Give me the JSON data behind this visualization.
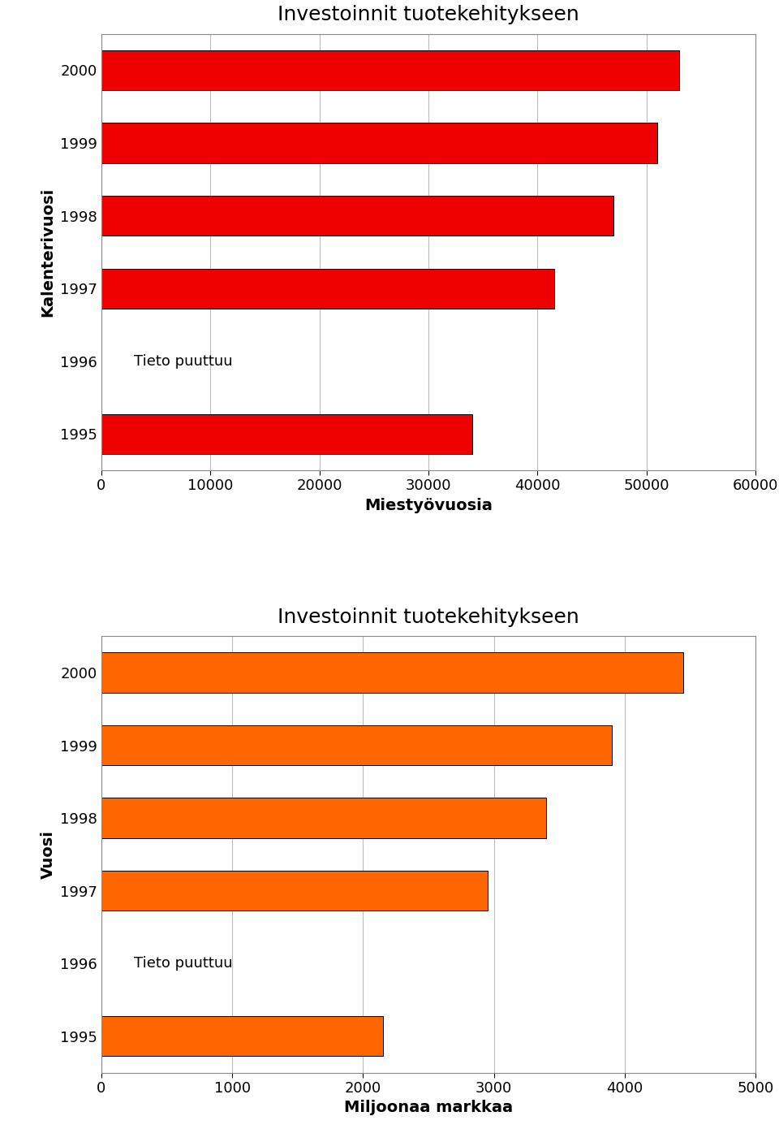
{
  "chart1": {
    "title": "Investoinnit tuotekehitykseen",
    "ylabel": "Kalenterivuosi",
    "xlabel": "Miestyövuosia",
    "years": [
      "2000",
      "1999",
      "1998",
      "1997",
      "1996",
      "1995"
    ],
    "values": [
      53000,
      51000,
      47000,
      41500,
      null,
      34000
    ],
    "bar_color": "#EE0000",
    "bar_edge_color": "#000000",
    "xlim": [
      0,
      60000
    ],
    "xticks": [
      0,
      10000,
      20000,
      30000,
      40000,
      50000,
      60000
    ],
    "missing_label": "Tieto puuttuu",
    "grid_color": "#bbbbbb"
  },
  "chart2": {
    "title": "Investoinnit tuotekehitykseen",
    "ylabel": "Vuosi",
    "xlabel": "Miljoonaa markkaa",
    "years": [
      "2000",
      "1999",
      "1998",
      "1997",
      "1996",
      "1995"
    ],
    "values": [
      4450,
      3900,
      3400,
      2950,
      null,
      2150
    ],
    "bar_color": "#FF6600",
    "bar_edge_color": "#000000",
    "xlim": [
      0,
      5000
    ],
    "xticks": [
      0,
      1000,
      2000,
      3000,
      4000,
      5000
    ],
    "missing_label": "Tieto puuttuu",
    "grid_color": "#bbbbbb"
  },
  "bg_color": "#ffffff",
  "title_fontsize": 18,
  "xlabel_fontsize": 14,
  "ylabel_fontsize": 14,
  "tick_fontsize": 13,
  "missing_fontsize": 13,
  "bar_height": 0.55
}
